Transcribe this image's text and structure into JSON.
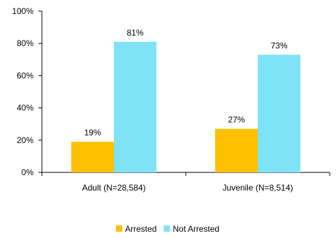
{
  "chart_data": {
    "type": "bar",
    "categories": [
      "Adult (N=28,584)",
      "Juvenile (N=8,514)"
    ],
    "series": [
      {
        "name": "Arrested",
        "values": [
          19,
          27
        ],
        "labels": [
          "19%",
          "27%"
        ],
        "color": "#FFC000"
      },
      {
        "name": "Not Arrested",
        "values": [
          81,
          73
        ],
        "labels": [
          "81%",
          "73%"
        ],
        "color": "#7FE3F8"
      }
    ],
    "y_ticks": [
      "0%",
      "20%",
      "40%",
      "60%",
      "80%",
      "100%"
    ],
    "ylim": [
      0,
      100
    ],
    "grid": false,
    "legend_position": "bottom"
  }
}
